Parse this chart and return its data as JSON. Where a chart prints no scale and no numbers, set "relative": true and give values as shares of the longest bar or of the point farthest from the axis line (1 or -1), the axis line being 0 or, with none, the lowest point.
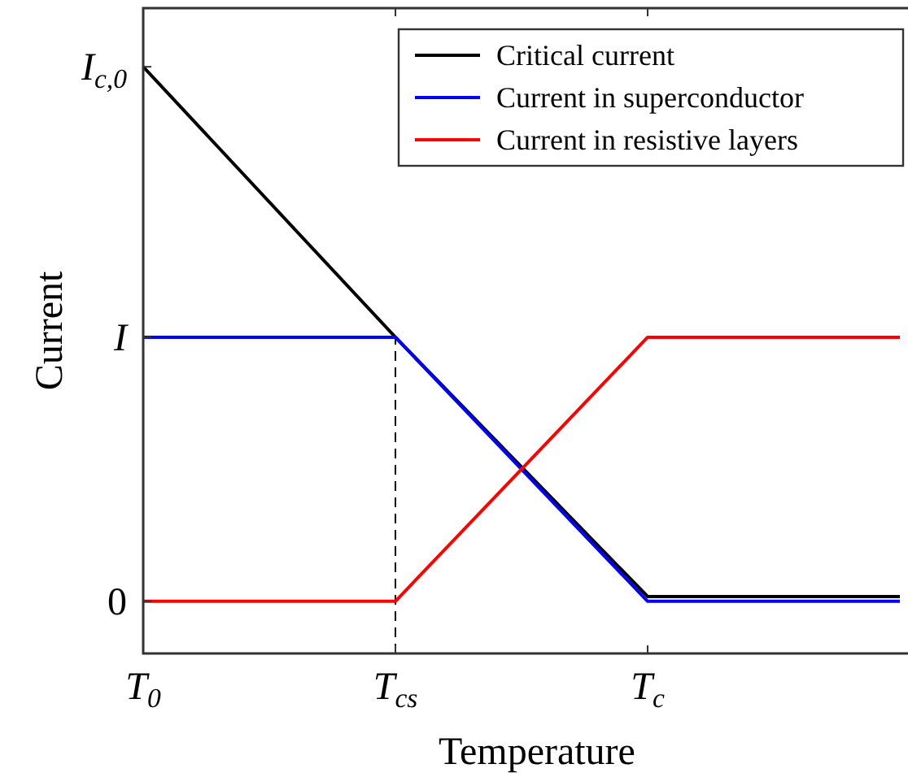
{
  "chart_data": {
    "type": "line",
    "xlabel": "Temperature",
    "ylabel": "Current",
    "relative": true,
    "categories": [
      "T$_{0}$",
      "T$_{cs}$",
      "T$_{c}$",
      null
    ],
    "annotations": [
      "0",
      "I",
      "I$_{c,0}$"
    ],
    "series": [
      {
        "name": "Critical current",
        "color": "#000000",
        "values": [
          1,
          0.539,
          0.097,
          0.097
        ]
      },
      {
        "name": "Current in superconductor",
        "color": "#0000ff",
        "values": [
          0.539,
          0.539,
          0.089,
          0.089
        ]
      },
      {
        "name": "Current in resistive layers",
        "color": "#ff0000",
        "values": [
          0.089,
          0.089,
          0.539,
          0.539
        ]
      }
    ],
    "ref_lines": [
      {
        "axis": "x",
        "value": "T$_{cs}$",
        "line_style": "dashed",
        "color": "#000000"
      }
    ],
    "legend": "top right",
    "marker": "none",
    "line_style": "solid"
  }
}
